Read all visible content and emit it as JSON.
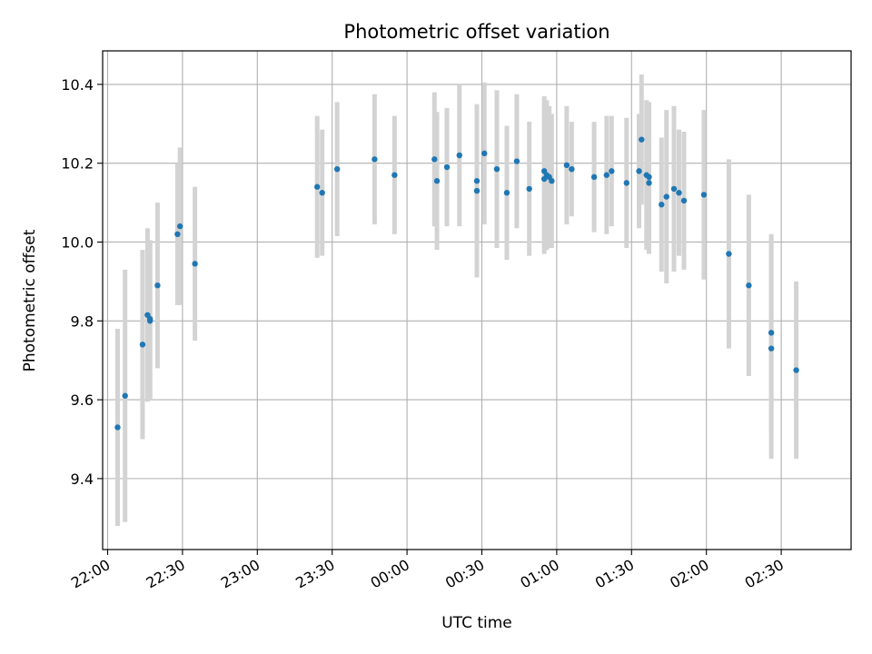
{
  "chart_data": {
    "type": "scatter",
    "title": "Photometric offset variation",
    "xlabel": "UTC time",
    "ylabel": "Photometric offset",
    "x_unit": "UTC clock time (hh:mm); points after 00:00 are the following day",
    "xlim": [
      "21:58",
      "02:58"
    ],
    "ylim": [
      9.22,
      10.485
    ],
    "x_ticks": [
      "22:00",
      "22:30",
      "23:00",
      "23:30",
      "00:00",
      "00:30",
      "01:00",
      "01:30",
      "02:00",
      "02:30"
    ],
    "y_ticks": [
      9.4,
      9.6,
      9.8,
      10.0,
      10.2,
      10.4
    ],
    "grid": true,
    "legend": "none",
    "colors": {
      "points": "#1f77b4",
      "error_bars": "#d3d3d3",
      "grid": "#b0b0b0"
    },
    "series": [
      {
        "x": [
          "22:04",
          "22:07",
          "22:14",
          "22:16",
          "22:17",
          "22:17",
          "22:20",
          "22:28",
          "22:29",
          "22:35",
          "23:24",
          "23:26",
          "23:32",
          "23:47",
          "23:55",
          "00:11",
          "00:12",
          "00:16",
          "00:21",
          "00:28",
          "00:28",
          "00:31",
          "00:36",
          "00:40",
          "00:44",
          "00:49",
          "00:55",
          "00:55",
          "00:56",
          "00:57",
          "00:58",
          "01:04",
          "01:06",
          "01:15",
          "01:20",
          "01:22",
          "01:28",
          "01:33",
          "01:34",
          "01:36",
          "01:37",
          "01:37",
          "01:42",
          "01:44",
          "01:47",
          "01:49",
          "01:51",
          "01:59",
          "02:09",
          "02:17",
          "02:26",
          "02:26",
          "02:36"
        ],
        "y": [
          9.53,
          9.61,
          9.74,
          9.815,
          9.8,
          9.805,
          9.89,
          10.02,
          10.04,
          9.945,
          10.14,
          10.125,
          10.185,
          10.21,
          10.17,
          10.21,
          10.155,
          10.19,
          10.22,
          10.13,
          10.155,
          10.225,
          10.185,
          10.125,
          10.205,
          10.135,
          10.18,
          10.16,
          10.17,
          10.165,
          10.155,
          10.195,
          10.185,
          10.165,
          10.17,
          10.18,
          10.15,
          10.18,
          10.26,
          10.17,
          10.165,
          10.15,
          10.095,
          10.115,
          10.135,
          10.125,
          10.105,
          10.12,
          9.97,
          9.89,
          9.77,
          9.73,
          9.675
        ],
        "error": [
          0.25,
          0.32,
          0.24,
          0.22,
          0.2,
          0.2,
          0.21,
          0.18,
          0.2,
          0.195,
          0.18,
          0.16,
          0.17,
          0.165,
          0.15,
          0.17,
          0.175,
          0.15,
          0.18,
          0.22,
          0.19,
          0.18,
          0.2,
          0.17,
          0.17,
          0.17,
          0.19,
          0.19,
          0.19,
          0.18,
          0.17,
          0.15,
          0.12,
          0.14,
          0.15,
          0.14,
          0.165,
          0.145,
          0.165,
          0.19,
          0.19,
          0.18,
          0.17,
          0.22,
          0.21,
          0.16,
          0.175,
          0.215,
          0.24,
          0.23,
          0.25,
          0.28,
          0.225
        ]
      }
    ]
  }
}
